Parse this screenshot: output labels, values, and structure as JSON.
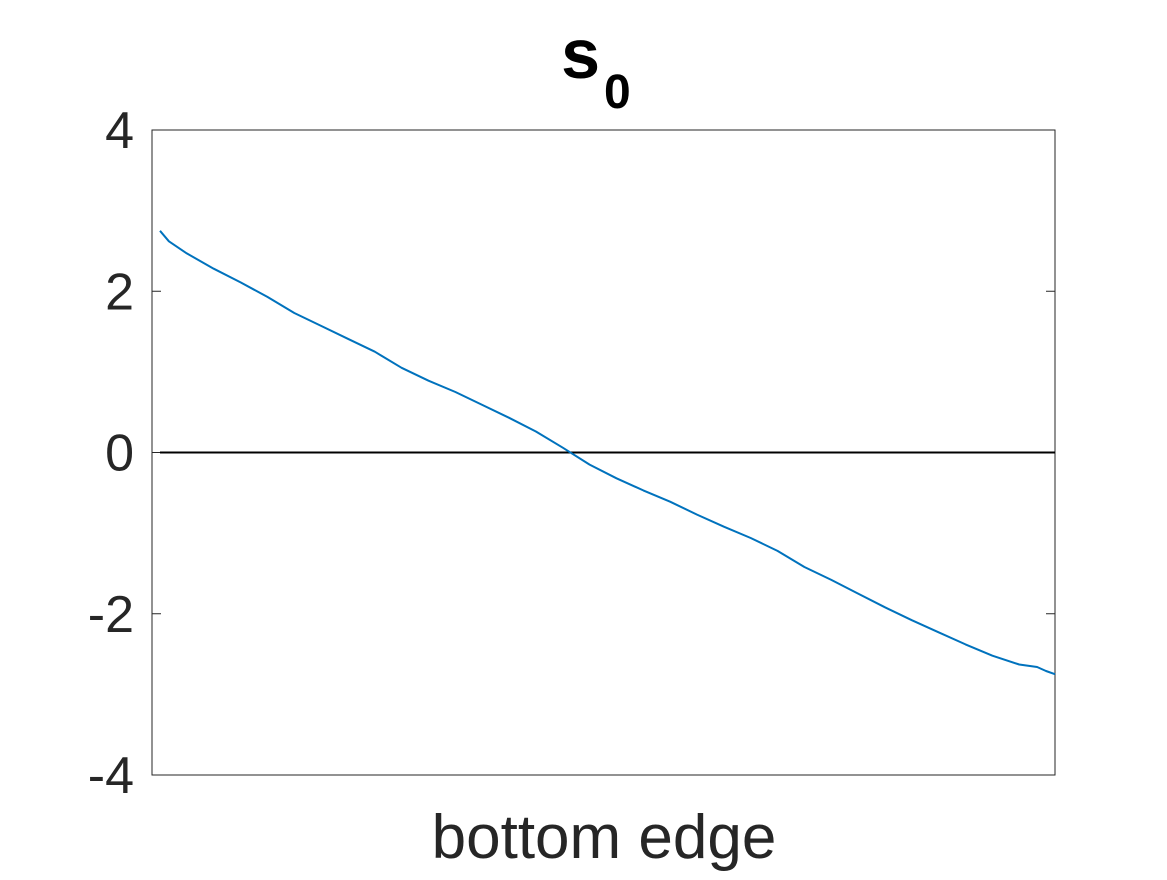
{
  "chart_data": {
    "type": "line",
    "title": "s",
    "title_subscript": "0",
    "xlabel": "bottom edge",
    "ylabel": "",
    "ylim": [
      -4,
      4
    ],
    "yticks": [
      4,
      2,
      0,
      -2,
      -4
    ],
    "ytick_labels": [
      "4",
      "2",
      "0",
      "-2",
      "-4"
    ],
    "xlim": [
      0,
      100
    ],
    "grid": false,
    "reference_line": {
      "y": 0,
      "color": "#000000"
    },
    "series": [
      {
        "color": "#0072BD",
        "x": [
          0,
          1,
          3,
          6,
          9,
          12,
          15,
          18,
          21,
          24,
          27,
          30,
          33,
          36,
          39,
          42,
          45,
          48,
          51,
          54,
          57,
          60,
          63,
          66,
          69,
          72,
          75,
          78,
          81,
          84,
          87,
          90,
          93,
          96,
          98,
          99,
          100
        ],
        "values": [
          2.75,
          2.62,
          2.47,
          2.28,
          2.11,
          1.93,
          1.73,
          1.57,
          1.41,
          1.25,
          1.05,
          0.89,
          0.75,
          0.59,
          0.43,
          0.26,
          0.06,
          -0.15,
          -0.32,
          -0.47,
          -0.61,
          -0.77,
          -0.92,
          -1.06,
          -1.22,
          -1.42,
          -1.58,
          -1.75,
          -1.92,
          -2.08,
          -2.23,
          -2.38,
          -2.52,
          -2.63,
          -2.66,
          -2.71,
          -2.75
        ]
      }
    ]
  }
}
